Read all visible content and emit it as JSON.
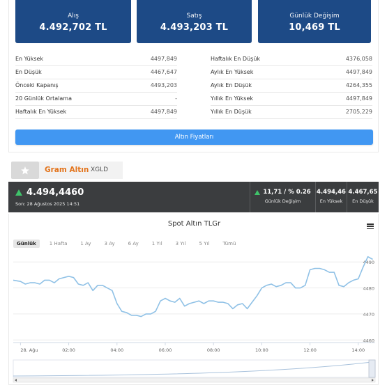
{
  "stats": {
    "buy": {
      "label": "Alış",
      "value": "4.492,702 TL"
    },
    "sell": {
      "label": "Satış",
      "value": "4.493,203 TL"
    },
    "change": {
      "label": "Günlük Değişim",
      "value": "10,469 TL"
    }
  },
  "details_left": [
    {
      "label": "En Yüksek",
      "value": "4497,849"
    },
    {
      "label": "En Düşük",
      "value": "4467,647"
    },
    {
      "label": "Önceki Kapanış",
      "value": "4493,203"
    },
    {
      "label": "20 Günlük Ortalama",
      "value": "-"
    },
    {
      "label": "Haftalık En Yüksek",
      "value": "4497,849"
    }
  ],
  "details_right": [
    {
      "label": "Haftalık En Düşük",
      "value": "4376,058"
    },
    {
      "label": "Aylık En Yüksek",
      "value": "4497,849"
    },
    {
      "label": "Aylık En Düşük",
      "value": "4264,355"
    },
    {
      "label": "Yıllık En Yüksek",
      "value": "4497,849"
    },
    {
      "label": "Yıllık En Düşük",
      "value": "2705,229"
    }
  ],
  "gold_prices_button": "Altın Fiyatları",
  "instrument": {
    "name": "Gram Altın",
    "symbol": "XGLD",
    "favorite_icon": "star-icon"
  },
  "quote": {
    "price": "4.494,4460",
    "time": "Son: 28 Ağustos 2025 14:51",
    "change_value": "11,71 / % 0.26",
    "change_label": "Günlük Değişim",
    "high_value": "4.494,46",
    "high_label": "En Yüksek",
    "low_value": "4.467,65",
    "low_label": "En Düşük",
    "direction": "up"
  },
  "chart_panel": {
    "menu_icon": "hamburger-menu-icon",
    "ranges": [
      "Günlük",
      "1 Hafta",
      "1 Ay",
      "3 Ay",
      "6 Ay",
      "1 Yıl",
      "3 Yıl",
      "5 Yıl",
      "Tümü"
    ],
    "active_range": "Günlük"
  },
  "colors": {
    "card_blue": "#1d4a86",
    "button_blue": "#4197f2",
    "title_orange": "#e3741c",
    "dark_bar": "#3b3d3f",
    "up_green": "#3fc36a",
    "line_blue": "#8fc1e6"
  },
  "chart_data": {
    "type": "line",
    "title": "Spot Altın TLGr",
    "x_tick_labels": [
      "28. Ağu",
      "02:00",
      "04:00",
      "06:00",
      "08:00",
      "10:00",
      "12:00",
      "14:00"
    ],
    "x_tick_hours": [
      0,
      2,
      4,
      6,
      8,
      10,
      12,
      14
    ],
    "y_ticks": [
      4460,
      4470,
      4480,
      4490
    ],
    "ylim": [
      4459,
      4493
    ],
    "xlim": [
      -0.3,
      14.7
    ],
    "grid": true,
    "series": [
      {
        "x": [
          -0.3,
          0.0,
          0.2,
          0.4,
          0.6,
          0.8,
          1.0,
          1.2,
          1.4,
          1.6,
          1.8,
          2.0,
          2.2,
          2.4,
          2.6,
          2.8,
          3.0,
          3.2,
          3.4,
          3.6,
          3.8,
          4.0,
          4.2,
          4.4,
          4.6,
          4.8,
          5.0,
          5.2,
          5.4,
          5.6,
          5.8,
          6.0,
          6.2,
          6.4,
          6.6,
          6.8,
          7.0,
          7.2,
          7.4,
          7.6,
          7.8,
          8.0,
          8.2,
          8.4,
          8.6,
          8.8,
          9.0,
          9.2,
          9.4,
          9.6,
          9.8,
          10.0,
          10.2,
          10.4,
          10.6,
          10.8,
          11.0,
          11.2,
          11.4,
          11.6,
          11.8,
          12.0,
          12.2,
          12.4,
          12.6,
          12.8,
          13.0,
          13.2,
          13.4,
          13.6,
          13.8,
          14.0,
          14.2,
          14.4,
          14.6
        ],
        "y": [
          4483,
          4482.5,
          4481.5,
          4482,
          4482,
          4481.5,
          4483,
          4483,
          4482,
          4483.5,
          4484,
          4484.5,
          4484,
          4481.5,
          4481,
          4482,
          4479,
          4481,
          4481,
          4480,
          4479,
          4474,
          4471,
          4470.5,
          4469.5,
          4469.5,
          4469,
          4470,
          4470,
          4471,
          4475,
          4476,
          4475,
          4474.5,
          4476,
          4473,
          4474,
          4474.5,
          4475,
          4474,
          4475,
          4475,
          4474.5,
          4474.5,
          4474,
          4472,
          4473.5,
          4474,
          4472,
          4474.5,
          4477,
          4480,
          4481,
          4481.5,
          4480.5,
          4481,
          4482,
          4482,
          4480,
          4480,
          4481,
          4487,
          4487.5,
          4487.5,
          4487,
          4486,
          4486,
          4481,
          4480.5,
          4482,
          4483,
          4483.5,
          4488,
          4492,
          4491
        ]
      }
    ]
  }
}
